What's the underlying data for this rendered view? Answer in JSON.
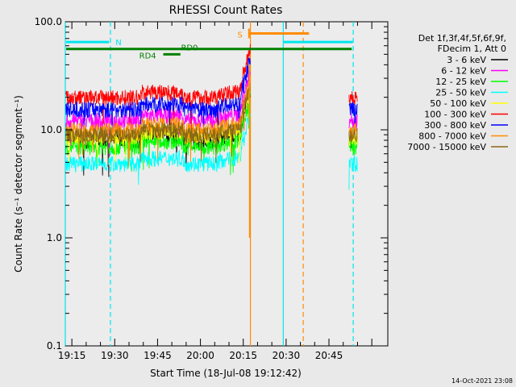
{
  "chart_data": {
    "type": "line",
    "title": "RHESSI Count Rates",
    "xlabel": "Start Time (18-Jul-08 19:12:42)",
    "ylabel": "Count Rate (s⁻¹ detector segment⁻¹)",
    "yscale": "log",
    "ylim": [
      0.1,
      100.0
    ],
    "xlim_min": [
      12.7,
      125.6
    ],
    "x_ticks": [
      {
        "m": 15,
        "label": "19:15"
      },
      {
        "m": 30,
        "label": "19:30"
      },
      {
        "m": 45,
        "label": "19:45"
      },
      {
        "m": 60,
        "label": "20:00"
      },
      {
        "m": 75,
        "label": "20:15"
      },
      {
        "m": 90,
        "label": "20:30"
      },
      {
        "m": 105,
        "label": "20:45"
      }
    ],
    "y_ticks": [
      {
        "v": 0.1,
        "label": "0.1"
      },
      {
        "v": 1.0,
        "label": "1.0"
      },
      {
        "v": 10.0,
        "label": "10.0"
      },
      {
        "v": 100.0,
        "label": "100.0"
      }
    ],
    "legend_position": "right",
    "legend_header": [
      "Det 1f,3f,4f,5f,6f,9f,",
      "FDecim 1, Att 0"
    ],
    "series": [
      {
        "name": "3 - 6 keV",
        "color": "#000000",
        "level": 8.0
      },
      {
        "name": "6 - 12 keV",
        "color": "#ff00ff",
        "level": 12.2
      },
      {
        "name": "12 - 25 keV",
        "color": "#00ff00",
        "level": 7.0
      },
      {
        "name": "25 - 50 keV",
        "color": "#00ffff",
        "level": 4.9
      },
      {
        "name": "50 - 100 keV",
        "color": "#ffff00",
        "level": 8.6
      },
      {
        "name": "100 - 300 keV",
        "color": "#ff0000",
        "level": 20.0
      },
      {
        "name": "300 - 800 keV",
        "color": "#0000ff",
        "level": 15.5
      },
      {
        "name": "800 - 7000 keV",
        "color": "#ff8c00",
        "level": 10.0
      },
      {
        "name": "7000 - 15000 keV",
        "color": "#8b6914",
        "level": 9.0
      }
    ],
    "data_gaps_min": [
      [
        77.5,
        112.0
      ]
    ],
    "flags": [
      {
        "label": "N",
        "color": "#00e5ee",
        "start_min": 13.0,
        "end_min": 28.0,
        "level": 65.0
      },
      {
        "label": "S",
        "color": "#ff8c00",
        "start_min": 77.0,
        "end_min": 98.0,
        "level": 78.0
      },
      {
        "label": "RD0",
        "color": "#008000",
        "start_min": 13.0,
        "end_min": 113.0,
        "level": 56.0
      },
      {
        "label": "RD4",
        "color": "#008000",
        "start_min": 47.0,
        "end_min": 53.0,
        "level": 50.0
      }
    ],
    "vertical_markers": [
      {
        "m": 12.7,
        "color": "#00e5ee",
        "style": "solid"
      },
      {
        "m": 28.5,
        "color": "#00e5ee",
        "style": "dashed"
      },
      {
        "m": 89.0,
        "color": "#00e5ee",
        "style": "solid"
      },
      {
        "m": 96.0,
        "color": "#ff8c00",
        "style": "dashed"
      },
      {
        "m": 77.5,
        "color": "#ff8c00",
        "style": "solid"
      },
      {
        "m": 113.5,
        "color": "#00e5ee",
        "style": "dashed"
      }
    ],
    "timestamp": "14-Oct-2021 23:08"
  }
}
